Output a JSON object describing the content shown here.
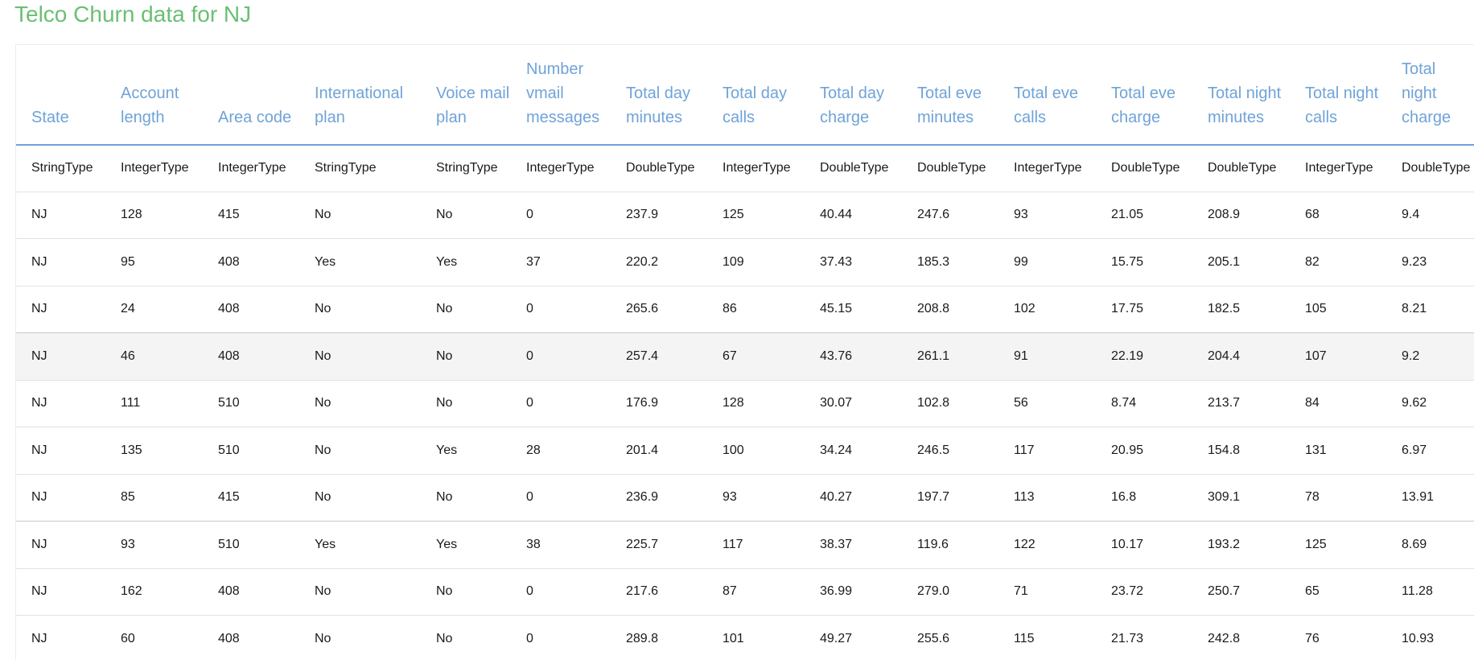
{
  "page": {
    "title": "Telco Churn data for NJ"
  },
  "table": {
    "headers": [
      "State",
      "Account length",
      "Area code",
      "International plan",
      "Voice mail plan",
      "Number vmail messages",
      "Total day minutes",
      "Total day calls",
      "Total day charge",
      "Total eve minutes",
      "Total eve calls",
      "Total eve charge",
      "Total night minutes",
      "Total night calls",
      "Total night charge"
    ],
    "types": [
      "StringType",
      "IntegerType",
      "IntegerType",
      "StringType",
      "StringType",
      "IntegerType",
      "DoubleType",
      "IntegerType",
      "DoubleType",
      "DoubleType",
      "IntegerType",
      "DoubleType",
      "DoubleType",
      "IntegerType",
      "DoubleType"
    ],
    "rows": [
      [
        "NJ",
        "128",
        "415",
        "No",
        "No",
        "0",
        "237.9",
        "125",
        "40.44",
        "247.6",
        "93",
        "21.05",
        "208.9",
        "68",
        "9.4"
      ],
      [
        "NJ",
        "95",
        "408",
        "Yes",
        "Yes",
        "37",
        "220.2",
        "109",
        "37.43",
        "185.3",
        "99",
        "15.75",
        "205.1",
        "82",
        "9.23"
      ],
      [
        "NJ",
        "24",
        "408",
        "No",
        "No",
        "0",
        "265.6",
        "86",
        "45.15",
        "208.8",
        "102",
        "17.75",
        "182.5",
        "105",
        "8.21"
      ],
      [
        "NJ",
        "46",
        "408",
        "No",
        "No",
        "0",
        "257.4",
        "67",
        "43.76",
        "261.1",
        "91",
        "22.19",
        "204.4",
        "107",
        "9.2"
      ],
      [
        "NJ",
        "111",
        "510",
        "No",
        "No",
        "0",
        "176.9",
        "128",
        "30.07",
        "102.8",
        "56",
        "8.74",
        "213.7",
        "84",
        "9.62"
      ],
      [
        "NJ",
        "135",
        "510",
        "No",
        "Yes",
        "28",
        "201.4",
        "100",
        "34.24",
        "246.5",
        "117",
        "20.95",
        "154.8",
        "131",
        "6.97"
      ],
      [
        "NJ",
        "85",
        "415",
        "No",
        "No",
        "0",
        "236.9",
        "93",
        "40.27",
        "197.7",
        "113",
        "16.8",
        "309.1",
        "78",
        "13.91"
      ],
      [
        "NJ",
        "93",
        "510",
        "Yes",
        "Yes",
        "38",
        "225.7",
        "117",
        "38.37",
        "119.6",
        "122",
        "10.17",
        "193.2",
        "125",
        "8.69"
      ],
      [
        "NJ",
        "162",
        "408",
        "No",
        "No",
        "0",
        "217.6",
        "87",
        "36.99",
        "279.0",
        "71",
        "23.72",
        "250.7",
        "65",
        "11.28"
      ],
      [
        "NJ",
        "60",
        "408",
        "No",
        "No",
        "0",
        "289.8",
        "101",
        "49.27",
        "255.6",
        "115",
        "21.73",
        "242.8",
        "76",
        "10.93"
      ]
    ]
  },
  "colors": {
    "title": "#6bbf73",
    "header_text": "#6fa3d8",
    "header_rule": "#6fa3d8",
    "row_highlight": "#f4f4f4"
  }
}
